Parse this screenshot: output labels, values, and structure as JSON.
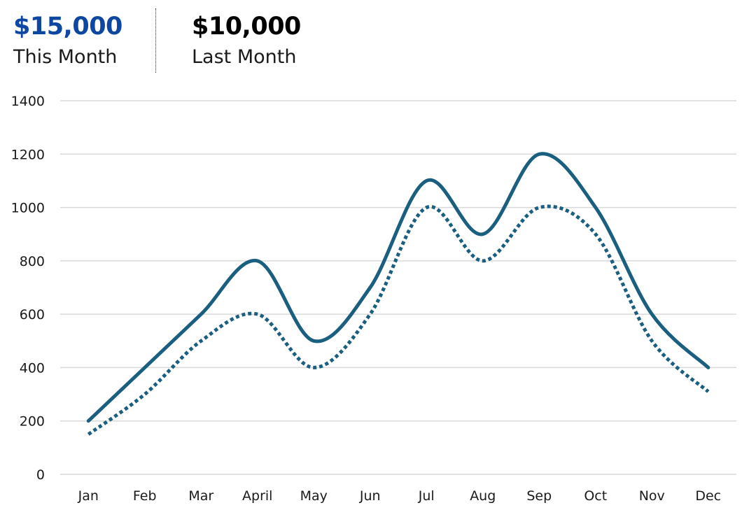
{
  "kpis": {
    "this_month": {
      "value": "$15,000",
      "label": "This Month"
    },
    "last_month": {
      "value": "$10,000",
      "label": "Last Month"
    }
  },
  "colors": {
    "this_month_value": "#0d47a1",
    "series_line": "#1a5e80",
    "grid": "#d9d9d9"
  },
  "chart_data": {
    "type": "line",
    "categories": [
      "Jan",
      "Feb",
      "Mar",
      "April",
      "May",
      "Jun",
      "Jul",
      "Aug",
      "Sep",
      "Oct",
      "Nov",
      "Dec"
    ],
    "series": [
      {
        "values": [
          200,
          400,
          600,
          800,
          500,
          700,
          1100,
          900,
          1200,
          1000,
          600,
          400
        ],
        "style": "solid"
      },
      {
        "values": [
          150,
          300,
          500,
          600,
          400,
          600,
          1000,
          800,
          1000,
          900,
          500,
          310
        ],
        "style": "dotted"
      }
    ],
    "yticks": [
      0,
      200,
      400,
      600,
      800,
      1000,
      1200,
      1400
    ],
    "ylim": [
      0,
      1400
    ],
    "grid": true,
    "smooth": true,
    "legend": "none"
  }
}
